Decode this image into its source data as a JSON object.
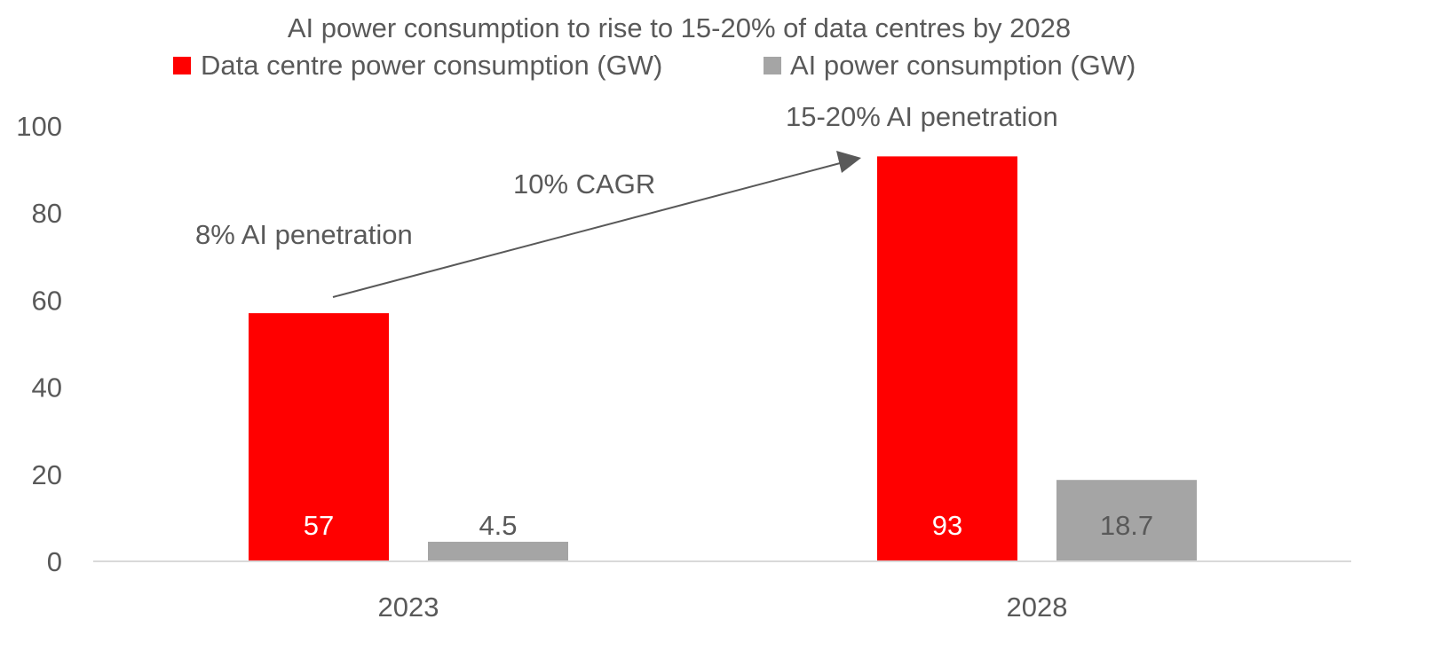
{
  "chart_data": {
    "type": "bar",
    "title": "AI power consumption to rise to 15-20% of data centres by 2028",
    "categories": [
      "2023",
      "2028"
    ],
    "series": [
      {
        "name": "Data centre power consumption (GW)",
        "values": [
          57,
          93
        ],
        "color": "#FF0000",
        "labels": [
          "57",
          "93"
        ]
      },
      {
        "name": "AI power consumption (GW)",
        "values": [
          4.5,
          18.7
        ],
        "color": "#A5A5A5",
        "labels": [
          "4.5",
          "18.7"
        ]
      }
    ],
    "ylim": [
      0,
      100
    ],
    "yticks": [
      "0",
      "20",
      "40",
      "60",
      "80",
      "100"
    ],
    "grid": false,
    "legend": "top",
    "annotations": {
      "left": "8% AI penetration",
      "arrow": "10% CAGR",
      "right": "15-20% AI penetration"
    }
  }
}
